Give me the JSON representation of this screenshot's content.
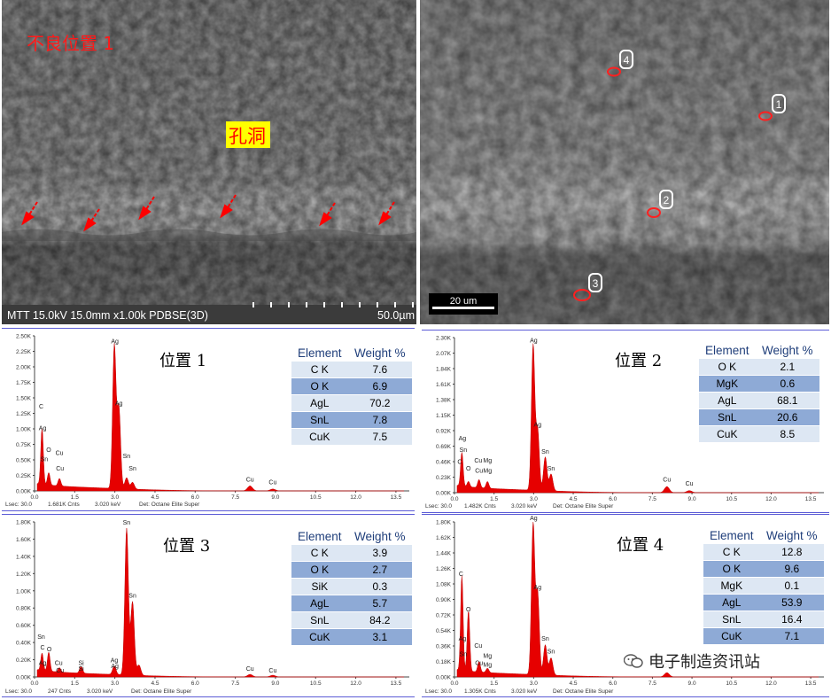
{
  "sem_left": {
    "title": "不良位置 1",
    "hole_label": "孔洞",
    "info_bar": "MTT 15.0kV 15.0mm x1.00k PDBSE(3D)",
    "scale": "50.0µm"
  },
  "sem_right": {
    "scale": "20 um",
    "markers": [
      "1",
      "2",
      "3",
      "4"
    ]
  },
  "columns": {
    "element": "Element",
    "weight": "Weight %"
  },
  "spectra": [
    {
      "label": "位置 1",
      "y_ticks": [
        "2.50K",
        "2.25K",
        "2.00K",
        "1.75K",
        "1.50K",
        "1.25K",
        "1.00K",
        "0.75K",
        "0.50K",
        "0.25K",
        "0.00K"
      ],
      "ymax": 2.5,
      "peaks": [
        [
          0.28,
          0.9
        ],
        [
          0.53,
          0.2
        ],
        [
          0.93,
          0.12
        ],
        [
          2.98,
          2.3
        ],
        [
          3.15,
          1.3
        ],
        [
          3.44,
          0.18
        ],
        [
          3.66,
          0.11
        ],
        [
          8.05,
          0.08
        ],
        [
          8.9,
          0.03
        ]
      ],
      "peak_labels": [
        [
          "C",
          0.25,
          1.3
        ],
        [
          "Ag",
          0.3,
          0.95
        ],
        [
          "O",
          0.53,
          0.6
        ],
        [
          "Sn",
          0.36,
          0.45
        ],
        [
          "Cu",
          0.93,
          0.55
        ],
        [
          "Cu",
          0.95,
          0.3
        ],
        [
          "Ag",
          3.0,
          2.35
        ],
        [
          "Ag",
          3.15,
          1.35
        ],
        [
          "Sn",
          3.44,
          0.5
        ],
        [
          "Sn",
          3.66,
          0.3
        ],
        [
          "Cu",
          8.05,
          0.12
        ],
        [
          "Cu",
          8.9,
          0.08
        ]
      ],
      "rows": [
        [
          "C K",
          "7.6"
        ],
        [
          "O K",
          "6.9"
        ],
        [
          "AgL",
          "70.2"
        ],
        [
          "SnL",
          "7.8"
        ],
        [
          "CuK",
          "7.5"
        ]
      ],
      "footer": [
        "Lsec: 30.0",
        "1.681K Cnts",
        "3.020 keV",
        "Det: Octane Elite Super"
      ]
    },
    {
      "label": "位置 2",
      "y_ticks": [
        "2.30K",
        "2.07K",
        "1.84K",
        "1.61K",
        "1.38K",
        "1.15K",
        "0.92K",
        "0.69K",
        "0.46K",
        "0.23K",
        "0.00K"
      ],
      "ymax": 2.3,
      "peaks": [
        [
          0.28,
          0.5
        ],
        [
          0.53,
          0.08
        ],
        [
          0.93,
          0.12
        ],
        [
          1.25,
          0.1
        ],
        [
          2.98,
          2.15
        ],
        [
          3.15,
          0.9
        ],
        [
          3.44,
          0.5
        ],
        [
          3.66,
          0.25
        ],
        [
          8.05,
          0.09
        ],
        [
          8.9,
          0.03
        ]
      ],
      "peak_labels": [
        [
          "Ag",
          0.3,
          0.75
        ],
        [
          "Sn",
          0.33,
          0.58
        ],
        [
          "C",
          0.2,
          0.4
        ],
        [
          "O",
          0.53,
          0.3
        ],
        [
          "Cu",
          0.9,
          0.42
        ],
        [
          "Mg",
          1.25,
          0.42
        ],
        [
          "Cu",
          0.93,
          0.27
        ],
        [
          "Mg",
          1.25,
          0.27
        ],
        [
          "Ag",
          3.0,
          2.2
        ],
        [
          "Ag",
          3.15,
          0.95
        ],
        [
          "Sn",
          3.44,
          0.55
        ],
        [
          "Sn",
          3.66,
          0.3
        ],
        [
          "Cu",
          8.05,
          0.14
        ],
        [
          "Cu",
          8.9,
          0.08
        ]
      ],
      "rows": [
        [
          "O K",
          "2.1"
        ],
        [
          "MgK",
          "0.6"
        ],
        [
          "AgL",
          "68.1"
        ],
        [
          "SnL",
          "20.6"
        ],
        [
          "CuK",
          "8.5"
        ]
      ],
      "footer": [
        "Lsec: 30.0",
        "1.482K Cnts",
        "3.020 keV",
        "Det: Octane Elite Super"
      ]
    },
    {
      "label": "位置 3",
      "y_ticks": [
        "1.80K",
        "1.60K",
        "1.40K",
        "1.20K",
        "1.00K",
        "0.80K",
        "0.60K",
        "0.40K",
        "0.20K",
        "0.00K"
      ],
      "ymax": 1.8,
      "peaks": [
        [
          0.28,
          0.2
        ],
        [
          0.53,
          0.22
        ],
        [
          0.93,
          0.05
        ],
        [
          1.74,
          0.08
        ],
        [
          2.98,
          0.1
        ],
        [
          3.44,
          1.7
        ],
        [
          3.66,
          0.85
        ],
        [
          3.9,
          0.12
        ],
        [
          8.05,
          0.03
        ],
        [
          8.9,
          0.02
        ]
      ],
      "peak_labels": [
        [
          "Sn",
          0.25,
          0.42
        ],
        [
          "C",
          0.3,
          0.3
        ],
        [
          "O",
          0.55,
          0.28
        ],
        [
          "Ag",
          0.3,
          0.12
        ],
        [
          "Cu",
          0.9,
          0.12
        ],
        [
          "Cu",
          0.95,
          0.03
        ],
        [
          "Si",
          1.74,
          0.12
        ],
        [
          "Si",
          1.74,
          0.05
        ],
        [
          "Ag",
          2.98,
          0.15
        ],
        [
          "Ag",
          3.0,
          0.08
        ],
        [
          "Sn",
          3.44,
          1.75
        ],
        [
          "Sn",
          3.66,
          0.9
        ],
        [
          "Cu",
          8.05,
          0.05
        ],
        [
          "Cu",
          8.9,
          0.03
        ]
      ],
      "rows": [
        [
          "C K",
          "3.9"
        ],
        [
          "O K",
          "2.7"
        ],
        [
          "SiK",
          "0.3"
        ],
        [
          "AgL",
          "5.7"
        ],
        [
          "SnL",
          "84.2"
        ],
        [
          "CuK",
          "3.1"
        ]
      ],
      "footer": [
        "Lsec: 30.0",
        "247 Cnts",
        "3.020 keV",
        "Det: Octane Elite Super"
      ]
    },
    {
      "label": "位置 4",
      "y_ticks": [
        "1.80K",
        "1.62K",
        "1.44K",
        "1.26K",
        "1.08K",
        "0.90K",
        "0.72K",
        "0.54K",
        "0.36K",
        "0.18K",
        "0.00K"
      ],
      "ymax": 1.8,
      "peaks": [
        [
          0.28,
          1.1
        ],
        [
          0.53,
          0.7
        ],
        [
          0.93,
          0.12
        ],
        [
          1.25,
          0.05
        ],
        [
          2.98,
          1.75
        ],
        [
          3.15,
          0.95
        ],
        [
          3.44,
          0.35
        ],
        [
          3.66,
          0.2
        ],
        [
          8.05,
          0.05
        ]
      ],
      "peak_labels": [
        [
          "C",
          0.25,
          1.15
        ],
        [
          "O",
          0.53,
          0.74
        ],
        [
          "Ag",
          0.3,
          0.4
        ],
        [
          "Sn",
          0.33,
          0.22
        ],
        [
          "Cu",
          0.9,
          0.32
        ],
        [
          "Mg",
          1.25,
          0.2
        ],
        [
          "Cu",
          0.93,
          0.12
        ],
        [
          "Mg",
          1.25,
          0.1
        ],
        [
          "Ag",
          3.0,
          1.8
        ],
        [
          "Ag",
          3.15,
          1.0
        ],
        [
          "Sn",
          3.44,
          0.4
        ],
        [
          "Sn",
          3.66,
          0.25
        ],
        [
          "Cu",
          8.05,
          0.09
        ]
      ],
      "rows": [
        [
          "C K",
          "12.8"
        ],
        [
          "O K",
          "9.6"
        ],
        [
          "MgK",
          "0.1"
        ],
        [
          "AgL",
          "53.9"
        ],
        [
          "SnL",
          "16.4"
        ],
        [
          "CuK",
          "7.1"
        ]
      ],
      "footer": [
        "Lsec: 30.0",
        "1.305K Cnts",
        "3.020 keV",
        "Det: Octane Elite Super"
      ]
    }
  ],
  "x_ticks": [
    "0.0",
    "1.5",
    "3.0",
    "4.5",
    "6.0",
    "7.5",
    "9.0",
    "10.5",
    "12.0",
    "13.5"
  ],
  "watermark": "电子制造资讯站",
  "chart_data": [
    {
      "type": "table",
      "title": "位置 1",
      "columns": [
        "Element",
        "Weight %"
      ],
      "rows": [
        [
          "C K",
          7.6
        ],
        [
          "O K",
          6.9
        ],
        [
          "AgL",
          70.2
        ],
        [
          "SnL",
          7.8
        ],
        [
          "CuK",
          7.5
        ]
      ]
    },
    {
      "type": "table",
      "title": "位置 2",
      "columns": [
        "Element",
        "Weight %"
      ],
      "rows": [
        [
          "O K",
          2.1
        ],
        [
          "MgK",
          0.6
        ],
        [
          "AgL",
          68.1
        ],
        [
          "SnL",
          20.6
        ],
        [
          "CuK",
          8.5
        ]
      ]
    },
    {
      "type": "table",
      "title": "位置 3",
      "columns": [
        "Element",
        "Weight %"
      ],
      "rows": [
        [
          "C K",
          3.9
        ],
        [
          "O K",
          2.7
        ],
        [
          "SiK",
          0.3
        ],
        [
          "AgL",
          5.7
        ],
        [
          "SnL",
          84.2
        ],
        [
          "CuK",
          3.1
        ]
      ]
    },
    {
      "type": "table",
      "title": "位置 4",
      "columns": [
        "Element",
        "Weight %"
      ],
      "rows": [
        [
          "C K",
          12.8
        ],
        [
          "O K",
          9.6
        ],
        [
          "MgK",
          0.1
        ],
        [
          "AgL",
          53.9
        ],
        [
          "SnL",
          16.4
        ],
        [
          "CuK",
          7.1
        ]
      ]
    }
  ]
}
